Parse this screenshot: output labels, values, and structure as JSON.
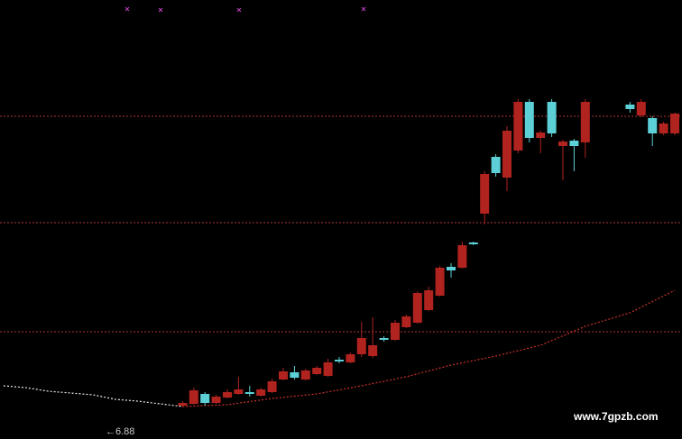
{
  "chart_data": {
    "type": "candlestick",
    "ylim": [
      6.16,
      15.9
    ],
    "hlines": [
      13.32,
      10.96,
      8.54
    ],
    "hline_color": "#8e2b2b",
    "up_color": "#b0231f",
    "down_color": "#5cd0d6",
    "annotation": "←6.88",
    "annotation_value": 6.88,
    "watermark": "www.7gpzb.com",
    "open": [
      null,
      null,
      null,
      null,
      null,
      null,
      null,
      null,
      null,
      null,
      null,
      null,
      null,
      null,
      null,
      null,
      6.9,
      6.94,
      7.16,
      6.96,
      7.08,
      7.16,
      7.2,
      7.12,
      7.2,
      7.48,
      7.64,
      7.48,
      7.6,
      7.56,
      7.92,
      7.86,
      8.04,
      8.0,
      8.4,
      8.36,
      8.64,
      8.74,
      9.02,
      9.34,
      9.98,
      9.96,
      10.52,
      11.16,
      12.42,
      11.96,
      12.56,
      13.64,
      12.84,
      13.64,
      12.66,
      12.78,
      12.74,
      null,
      null,
      null,
      13.58,
      13.34,
      13.28,
      12.94,
      12.94
    ],
    "close": [
      null,
      null,
      null,
      null,
      null,
      null,
      null,
      null,
      null,
      null,
      null,
      null,
      null,
      null,
      null,
      null,
      6.96,
      7.24,
      6.96,
      7.1,
      7.2,
      7.26,
      7.16,
      7.26,
      7.44,
      7.66,
      7.52,
      7.68,
      7.74,
      7.86,
      7.88,
      8.04,
      8.4,
      8.24,
      8.36,
      8.74,
      8.88,
      9.4,
      9.46,
      9.96,
      9.9,
      10.46,
      10.48,
      12.04,
      12.06,
      13.0,
      13.64,
      12.84,
      12.96,
      12.94,
      12.76,
      12.66,
      13.64,
      null,
      null,
      null,
      13.48,
      13.64,
      12.94,
      13.16,
      13.38
    ],
    "high": [
      null,
      null,
      null,
      null,
      null,
      null,
      null,
      null,
      null,
      null,
      null,
      null,
      null,
      null,
      null,
      null,
      7.0,
      7.3,
      7.2,
      7.14,
      7.26,
      7.54,
      7.34,
      7.3,
      7.5,
      7.74,
      7.78,
      7.72,
      7.78,
      7.94,
      7.98,
      8.08,
      8.76,
      8.86,
      8.44,
      8.8,
      8.92,
      9.44,
      9.54,
      10.0,
      10.06,
      10.54,
      10.54,
      12.1,
      12.48,
      13.1,
      13.7,
      13.7,
      13.0,
      13.7,
      12.8,
      12.82,
      13.7,
      null,
      null,
      null,
      13.64,
      13.7,
      13.32,
      13.2,
      13.4
    ],
    "low": [
      null,
      null,
      null,
      null,
      null,
      null,
      null,
      null,
      null,
      null,
      null,
      null,
      null,
      null,
      null,
      null,
      6.88,
      6.92,
      6.9,
      6.94,
      7.06,
      7.14,
      7.1,
      7.1,
      7.18,
      7.46,
      7.48,
      7.46,
      7.58,
      7.54,
      7.84,
      7.84,
      7.98,
      7.96,
      8.32,
      8.34,
      8.62,
      8.72,
      9.0,
      9.32,
      9.74,
      9.94,
      10.46,
      10.92,
      11.98,
      11.66,
      12.5,
      12.74,
      12.5,
      12.86,
      11.9,
      12.1,
      12.4,
      null,
      null,
      null,
      13.4,
      13.3,
      12.66,
      12.9,
      12.9
    ],
    "lines": [
      {
        "color": "#e8e8e8",
        "x": [
          0,
          2,
          4,
          6,
          8,
          10,
          12,
          14,
          16
        ],
        "values": [
          7.34,
          7.3,
          7.22,
          7.18,
          7.14,
          7.04,
          7.0,
          6.94,
          6.88
        ]
      },
      {
        "color": "#c8322a",
        "x": [
          16,
          20,
          24,
          28,
          32,
          36,
          40,
          44,
          48,
          52,
          56,
          60
        ],
        "values": [
          6.88,
          6.92,
          7.06,
          7.16,
          7.34,
          7.54,
          7.8,
          8.0,
          8.24,
          8.66,
          8.96,
          9.46
        ]
      }
    ]
  }
}
